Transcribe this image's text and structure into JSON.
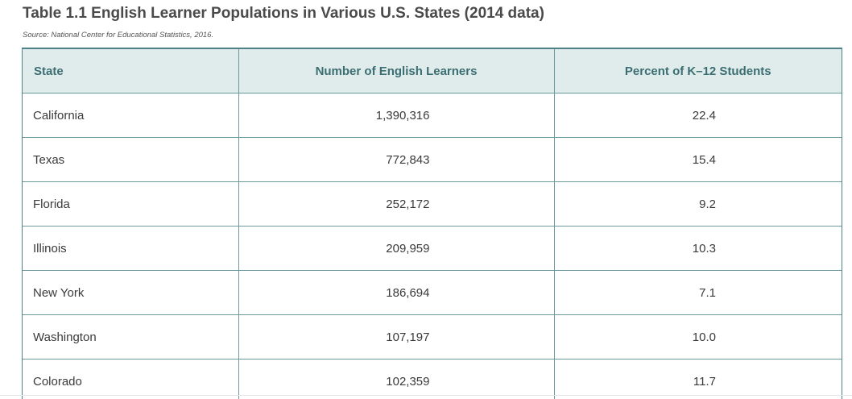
{
  "title": "Table 1.1 English Learner Populations in Various U.S. States (2014 data)",
  "source": "Source: National Center for Educational Statistics, 2016.",
  "table": {
    "headers": [
      "State",
      "Number of English Learners",
      "Percent of K–12 Students"
    ],
    "rows": [
      [
        "California",
        "1,390,316",
        "22.4"
      ],
      [
        "Texas",
        "772,843",
        "15.4"
      ],
      [
        "Florida",
        "252,172",
        "9.2"
      ],
      [
        "Illinois",
        "209,959",
        "10.3"
      ],
      [
        "New York",
        "186,694",
        "7.1"
      ],
      [
        "Washington",
        "107,197",
        "10.0"
      ],
      [
        "Colorado",
        "102,359",
        "11.7"
      ]
    ]
  },
  "colors": {
    "header_bg": "#e0eceb",
    "header_text": "#3b6e72",
    "border": "#4f8286"
  }
}
